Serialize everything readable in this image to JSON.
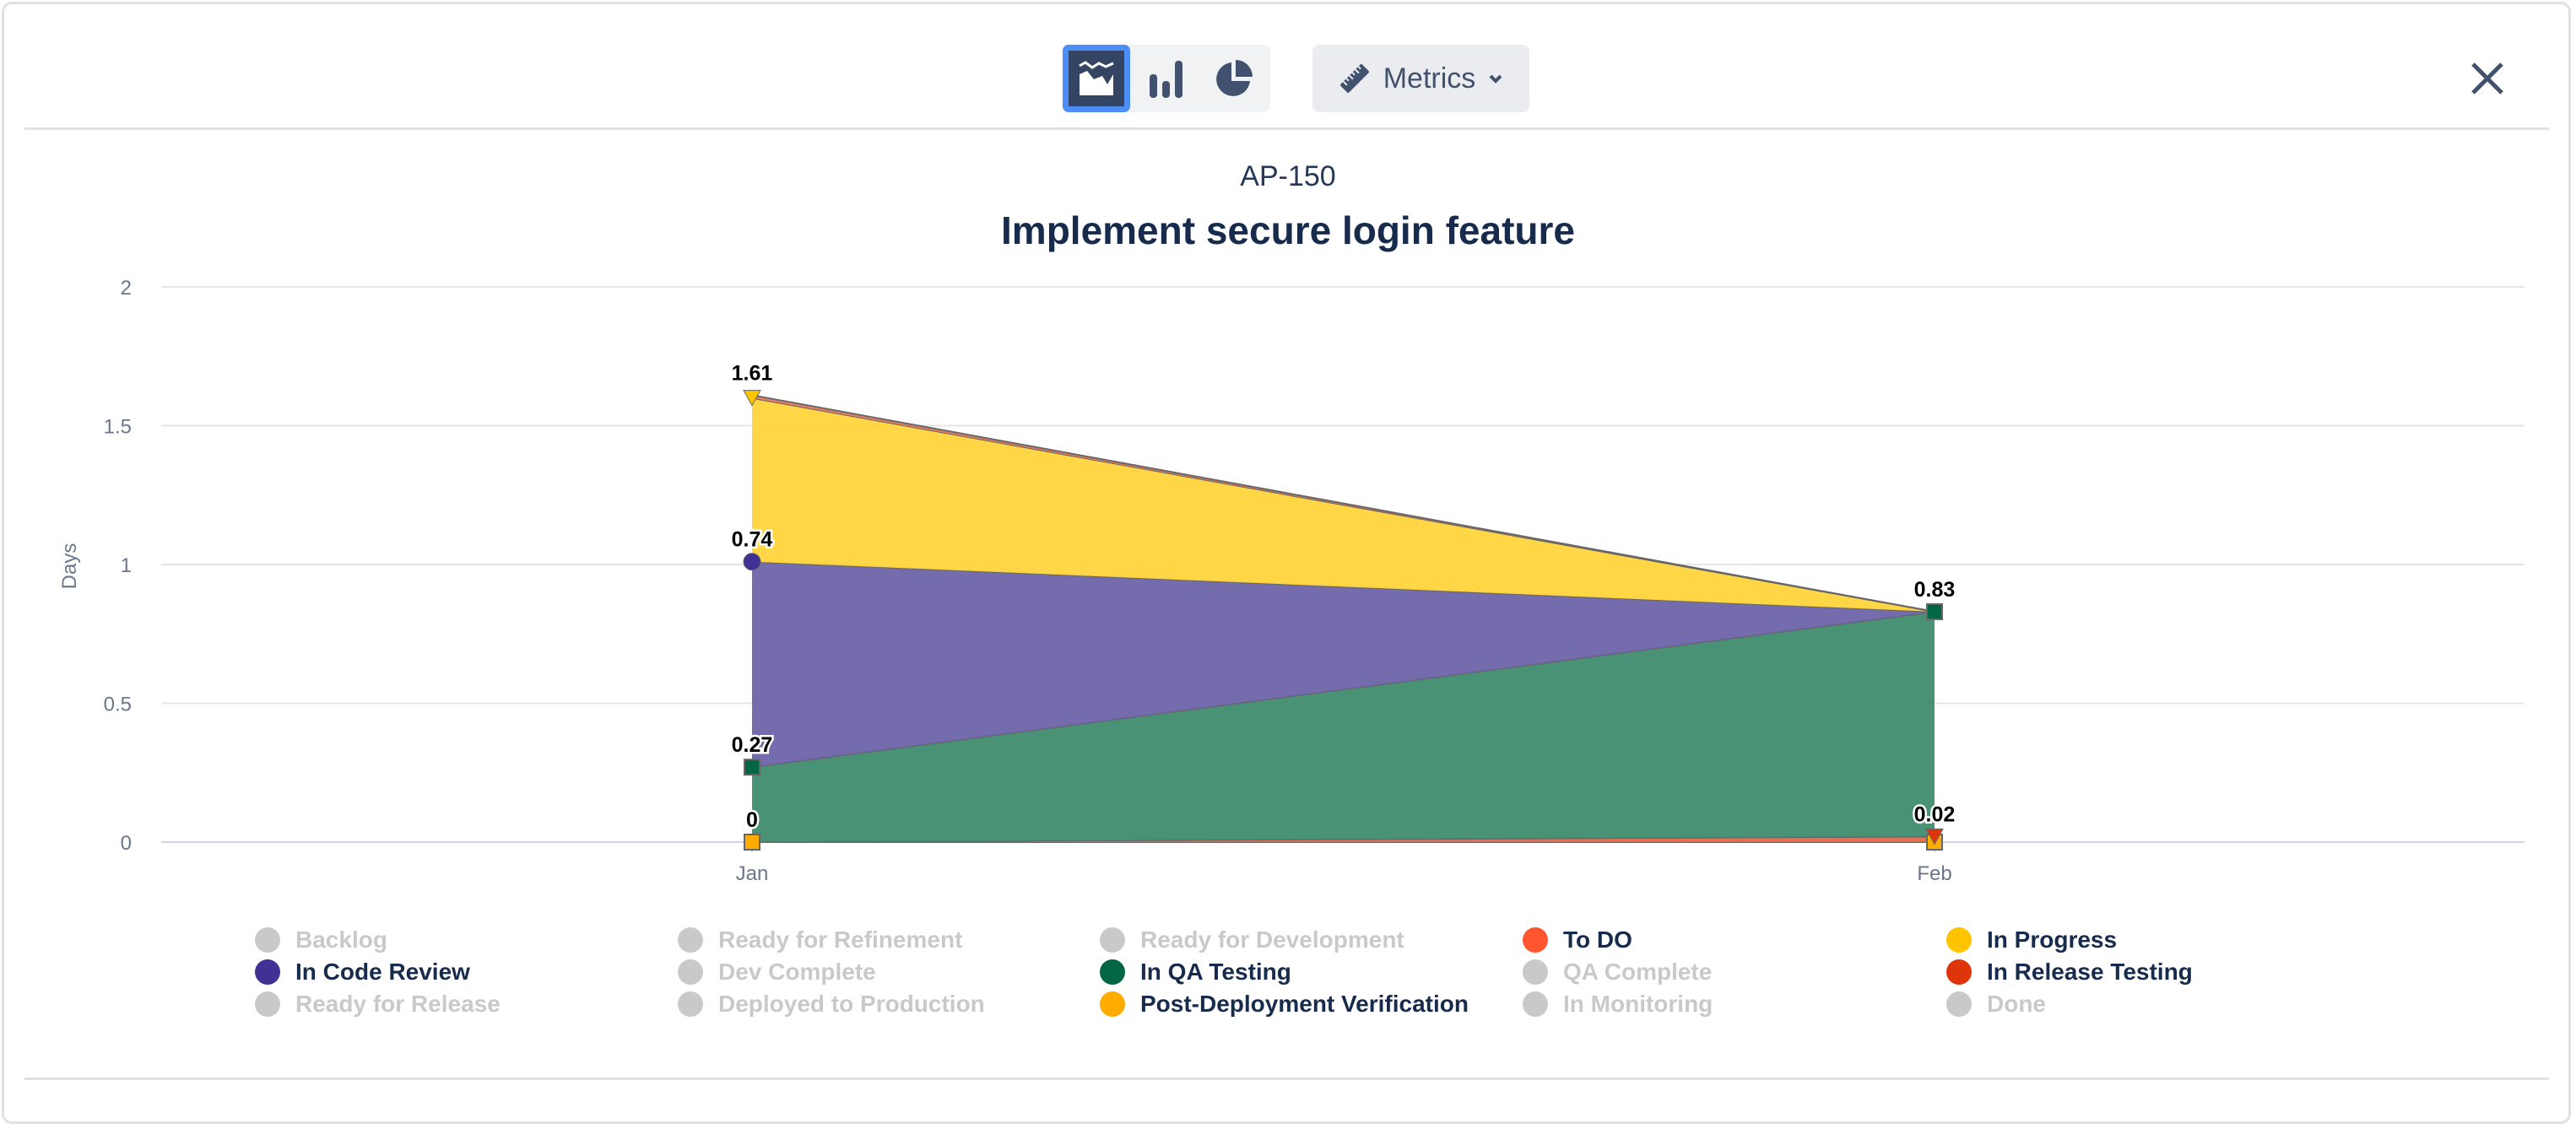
{
  "toolbar": {
    "chart_types": [
      {
        "name": "area-chart-icon",
        "active": true
      },
      {
        "name": "bar-chart-icon",
        "active": false
      },
      {
        "name": "pie-chart-icon",
        "active": false
      }
    ],
    "metrics_label": "Metrics"
  },
  "header": {
    "issue_key": "AP-150",
    "title": "Implement secure login feature"
  },
  "chart_data": {
    "type": "area",
    "stacked": true,
    "title": "Implement secure login feature",
    "subtitle": "AP-150",
    "xlabel": "",
    "ylabel": "Days",
    "categories": [
      "Jan",
      "Feb"
    ],
    "ylim": [
      0,
      2
    ],
    "yticks": [
      "0",
      "0.5",
      "1",
      "1.5",
      "2"
    ],
    "ytick_values": [
      0,
      0.5,
      1,
      1.5,
      2
    ],
    "grid": true,
    "series": [
      {
        "name": "Post-Deployment Verification",
        "color": "#FFAB00",
        "fill": "#FFAB00",
        "marker": "square",
        "values": [
          0,
          0
        ]
      },
      {
        "name": "In Release Testing",
        "color": "#DE350B",
        "fill": "#E8674A",
        "marker": "triangle",
        "values": [
          0,
          0.02
        ]
      },
      {
        "name": "In QA Testing",
        "color": "#006644",
        "fill": "#3F8C6E",
        "marker": "square",
        "values": [
          0.27,
          0.81
        ]
      },
      {
        "name": "In Code Review",
        "color": "#403294",
        "fill": "#6E64AA",
        "marker": "circle",
        "values": [
          0.74,
          0
        ]
      },
      {
        "name": "In Progress",
        "color": "#FFC400",
        "fill": "#FFD43B",
        "marker": "triangle",
        "values": [
          0.59,
          0
        ]
      },
      {
        "name": "To DO",
        "color": "#FF5630",
        "fill": "#F07A5C",
        "marker": "none",
        "values": [
          0.01,
          0
        ]
      }
    ],
    "data_labels": [
      {
        "category": "Jan",
        "y": 0,
        "text": "0"
      },
      {
        "category": "Jan",
        "y": 0.27,
        "text": "0.27"
      },
      {
        "category": "Jan",
        "y": 1.01,
        "text": "0.74"
      },
      {
        "category": "Jan",
        "y": 1.61,
        "text": "1.61"
      },
      {
        "category": "Feb",
        "y": 0.02,
        "text": "0.02"
      },
      {
        "category": "Feb",
        "y": 0.83,
        "text": "0.83"
      }
    ],
    "legend_placement": "bottom",
    "legend": [
      {
        "label": "Backlog",
        "color": "#c9c9c9",
        "active": false
      },
      {
        "label": "Ready for Refinement",
        "color": "#c9c9c9",
        "active": false
      },
      {
        "label": "Ready for Development",
        "color": "#c9c9c9",
        "active": false
      },
      {
        "label": "To DO",
        "color": "#FF5630",
        "active": true
      },
      {
        "label": "In Progress",
        "color": "#FFC400",
        "active": true
      },
      {
        "label": "In Code Review",
        "color": "#403294",
        "active": true
      },
      {
        "label": "Dev Complete",
        "color": "#c9c9c9",
        "active": false
      },
      {
        "label": "In QA Testing",
        "color": "#006644",
        "active": true
      },
      {
        "label": "QA Complete",
        "color": "#c9c9c9",
        "active": false
      },
      {
        "label": "In Release Testing",
        "color": "#DE350B",
        "active": true
      },
      {
        "label": "Ready for Release",
        "color": "#c9c9c9",
        "active": false
      },
      {
        "label": "Deployed to Production",
        "color": "#c9c9c9",
        "active": false
      },
      {
        "label": "Post-Deployment Verification",
        "color": "#FFAB00",
        "active": true
      },
      {
        "label": "In Monitoring",
        "color": "#c9c9c9",
        "active": false
      },
      {
        "label": "Done",
        "color": "#c9c9c9",
        "active": false
      }
    ]
  }
}
